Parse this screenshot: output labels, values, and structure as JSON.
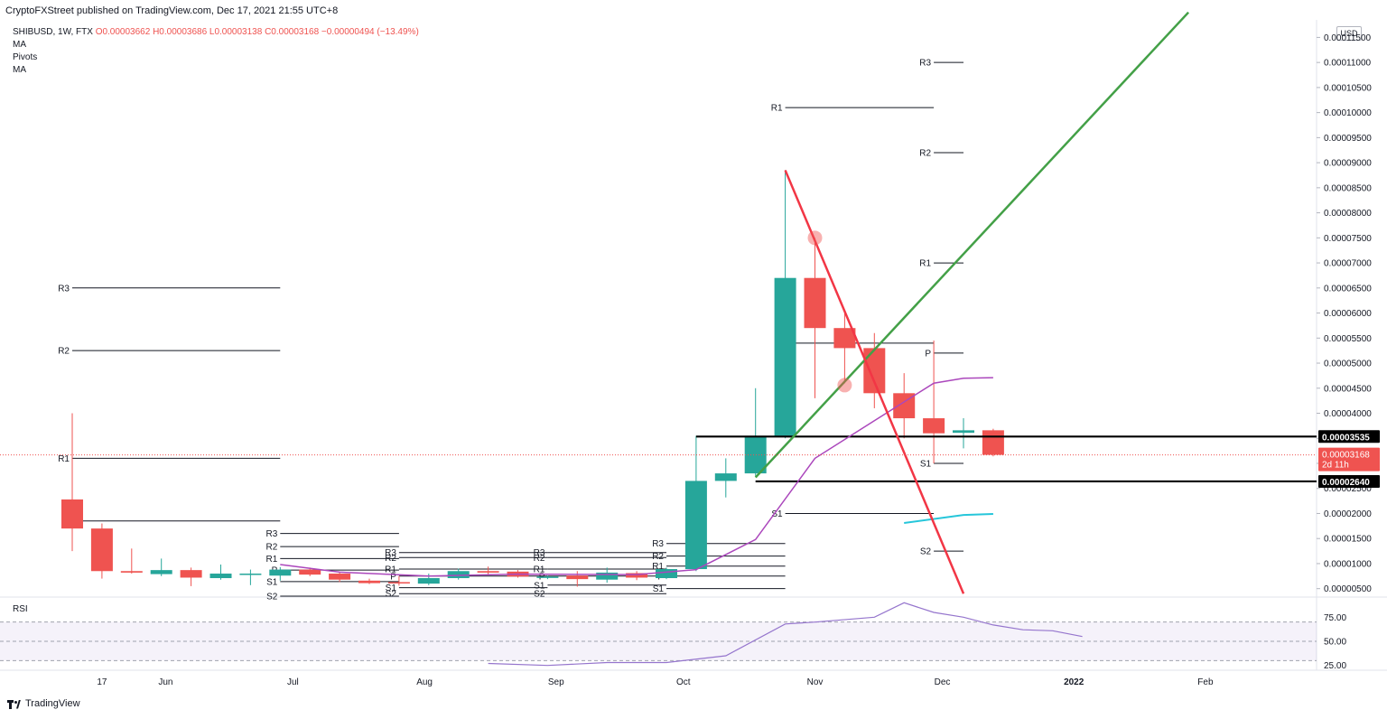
{
  "header": {
    "published": "CryptoFXStreet published on TradingView.com, Dec 17, 2021 21:55 UTC+8"
  },
  "legend": {
    "symbol": "SHIBUSD, 1W, FTX",
    "ohlc": "O0.00003662 H0.00003686 L0.00003138 C0.00003168 −0.00000494 (−13.49%)",
    "indicators": [
      "MA",
      "Pivots",
      "MA"
    ]
  },
  "currency": "USD",
  "rsi_label": "RSI",
  "footer": {
    "brand": "TradingView"
  },
  "colors": {
    "up": "#26a69a",
    "down": "#ef5350",
    "ma": "#ab47bc",
    "ma2": "#26c6da",
    "rsi": "#9575cd",
    "trend_green": "#43a047",
    "trend_red": "#f23645"
  },
  "chart_data": [
    {
      "type": "candlestick",
      "title": "SHIBUSD, 1W, FTX",
      "x_ticks": [
        "17",
        "Jun",
        "Jul",
        "Aug",
        "Sep",
        "Oct",
        "Nov",
        "Dec",
        "2022",
        "Feb"
      ],
      "y_ticks": [
        "0.00011500",
        "0.00011000",
        "0.00010500",
        "0.00010000",
        "0.00009500",
        "0.00009000",
        "0.00008500",
        "0.00008000",
        "0.00007500",
        "0.00007000",
        "0.00006500",
        "0.00006000",
        "0.00005500",
        "0.00005000",
        "0.00004500",
        "0.00004000",
        "0.00003500",
        "0.00003000",
        "0.00002500",
        "0.00002000",
        "0.00001500",
        "0.00001000",
        "0.00000500"
      ],
      "ylim": [
        3.5e-06,
        0.0001185
      ],
      "candles": [
        {
          "date": "2021-05-10",
          "o": 2.28e-05,
          "h": 4e-05,
          "l": 1.25e-05,
          "c": 1.7e-05
        },
        {
          "date": "2021-05-17",
          "o": 1.7e-05,
          "h": 1.8e-05,
          "l": 7e-06,
          "c": 8.5e-06
        },
        {
          "date": "2021-05-24",
          "o": 8.5e-06,
          "h": 1.3e-05,
          "l": 8e-06,
          "c": 8.2e-06
        },
        {
          "date": "2021-05-31",
          "o": 7.9e-06,
          "h": 1.1e-05,
          "l": 7.5e-06,
          "c": 8.7e-06
        },
        {
          "date": "2021-06-07",
          "o": 8.7e-06,
          "h": 9.2e-06,
          "l": 5.5e-06,
          "c": 7.2e-06
        },
        {
          "date": "2021-06-14",
          "o": 7.1e-06,
          "h": 9.8e-06,
          "l": 6.8e-06,
          "c": 8e-06
        },
        {
          "date": "2021-06-21",
          "o": 8e-06,
          "h": 8.8e-06,
          "l": 5.7e-06,
          "c": 8e-06
        },
        {
          "date": "2021-06-28",
          "o": 7.6e-06,
          "h": 9.3e-06,
          "l": 6.6e-06,
          "c": 8.8e-06
        },
        {
          "date": "2021-07-05",
          "o": 8.8e-06,
          "h": 9.2e-06,
          "l": 7.5e-06,
          "c": 7.8e-06
        },
        {
          "date": "2021-07-12",
          "o": 8e-06,
          "h": 8.2e-06,
          "l": 6.3e-06,
          "c": 6.8e-06
        },
        {
          "date": "2021-07-19",
          "o": 6.6e-06,
          "h": 7e-06,
          "l": 5.9e-06,
          "c": 6.1e-06
        },
        {
          "date": "2021-07-26",
          "o": 6.3e-06,
          "h": 7.5e-06,
          "l": 5.6e-06,
          "c": 6.1e-06
        },
        {
          "date": "2021-08-02",
          "o": 6e-06,
          "h": 8e-06,
          "l": 5.7e-06,
          "c": 7.1e-06
        },
        {
          "date": "2021-08-09",
          "o": 7.1e-06,
          "h": 9e-06,
          "l": 6.8e-06,
          "c": 8.5e-06
        },
        {
          "date": "2021-08-16",
          "o": 8.5e-06,
          "h": 9.4e-06,
          "l": 7.8e-06,
          "c": 8.2e-06
        },
        {
          "date": "2021-08-23",
          "o": 8.4e-06,
          "h": 8.7e-06,
          "l": 7.2e-06,
          "c": 7.4e-06
        },
        {
          "date": "2021-08-30",
          "o": 7.3e-06,
          "h": 7.6e-06,
          "l": 6.9e-06,
          "c": 7.4e-06
        },
        {
          "date": "2021-09-06",
          "o": 7.6e-06,
          "h": 8.5e-06,
          "l": 5.4e-06,
          "c": 6.9e-06
        },
        {
          "date": "2021-09-13",
          "o": 6.8e-06,
          "h": 9.2e-06,
          "l": 6.2e-06,
          "c": 8.2e-06
        },
        {
          "date": "2021-09-20",
          "o": 8.1e-06,
          "h": 8.5e-06,
          "l": 6.7e-06,
          "c": 7.2e-06
        },
        {
          "date": "2021-09-27",
          "o": 7.1e-06,
          "h": 9.2e-06,
          "l": 6.9e-06,
          "c": 8.9e-06
        },
        {
          "date": "2021-10-04",
          "o": 8.9e-06,
          "h": 3.55e-05,
          "l": 8.5e-06,
          "c": 2.65e-05
        },
        {
          "date": "2021-10-11",
          "o": 2.65e-05,
          "h": 3.1e-05,
          "l": 2.32e-05,
          "c": 2.8e-05
        },
        {
          "date": "2021-10-18",
          "o": 2.8e-05,
          "h": 4.5e-05,
          "l": 2.75e-05,
          "c": 3.55e-05
        },
        {
          "date": "2021-10-25",
          "o": 3.55e-05,
          "h": 8.85e-05,
          "l": 3.5e-05,
          "c": 6.7e-05
        },
        {
          "date": "2021-11-01",
          "o": 6.7e-05,
          "h": 7.5e-05,
          "l": 4.3e-05,
          "c": 5.7e-05
        },
        {
          "date": "2021-11-08",
          "o": 5.7e-05,
          "h": 6e-05,
          "l": 4.6e-05,
          "c": 5.3e-05
        },
        {
          "date": "2021-11-15",
          "o": 5.3e-05,
          "h": 5.6e-05,
          "l": 4.1e-05,
          "c": 4.4e-05
        },
        {
          "date": "2021-11-22",
          "o": 4.4e-05,
          "h": 4.8e-05,
          "l": 3.5e-05,
          "c": 3.9e-05
        },
        {
          "date": "2021-11-29",
          "o": 3.9e-05,
          "h": 5.45e-05,
          "l": 3e-05,
          "c": 3.6e-05
        },
        {
          "date": "2021-12-06",
          "o": 3.61e-05,
          "h": 3.9e-05,
          "l": 3.3e-05,
          "c": 3.66e-05
        },
        {
          "date": "2021-12-13",
          "o": 3.66e-05,
          "h": 3.69e-05,
          "l": 3.14e-05,
          "c": 3.17e-05
        }
      ],
      "ma_line": [
        {
          "date": "2021-06-28",
          "v": 9.8e-06
        },
        {
          "date": "2021-07-12",
          "v": 8.3e-06
        },
        {
          "date": "2021-08-02",
          "v": 7.5e-06
        },
        {
          "date": "2021-08-23",
          "v": 7.9e-06
        },
        {
          "date": "2021-09-20",
          "v": 7.8e-06
        },
        {
          "date": "2021-10-04",
          "v": 8.8e-06
        },
        {
          "date": "2021-10-18",
          "v": 1.48e-05
        },
        {
          "date": "2021-11-01",
          "v": 3.1e-05
        },
        {
          "date": "2021-11-15",
          "v": 3.85e-05
        },
        {
          "date": "2021-11-29",
          "v": 4.6e-05
        },
        {
          "date": "2021-12-06",
          "v": 4.7e-05
        },
        {
          "date": "2021-12-13",
          "v": 4.71e-05
        }
      ],
      "ma2_line": [
        {
          "date": "2021-11-22",
          "v": 1.81e-05
        },
        {
          "date": "2021-12-06",
          "v": 1.97e-05
        },
        {
          "date": "2021-12-13",
          "v": 1.99e-05
        }
      ],
      "trendlines": [
        {
          "color": "green",
          "from": {
            "date": "2021-10-18",
            "v": 2.72e-05
          },
          "to": {
            "date": "2022-01-28",
            "v": 0.00012
          }
        },
        {
          "color": "red",
          "from": {
            "date": "2021-10-25",
            "v": 8.85e-05
          },
          "to": {
            "date": "2021-12-06",
            "v": 4e-06
          }
        }
      ],
      "markers": [
        {
          "date": "2021-11-01",
          "v": 7.5e-05
        },
        {
          "date": "2021-11-08",
          "v": 4.56e-05
        }
      ],
      "horizontal_levels": [
        {
          "value": 3.535e-05,
          "label": "0.00003535",
          "from": "2021-10-04"
        },
        {
          "value": 2.64e-05,
          "label": "0.00002640",
          "from": "2021-10-18"
        }
      ],
      "last_price": {
        "value": 3.168e-05,
        "label": "0.00003168",
        "countdown": "2d 11h"
      },
      "pivots": [
        {
          "from": "2021-05-10",
          "to": "2021-06-28",
          "levels": [
            {
              "name": "R3",
              "v": 6.5e-05
            },
            {
              "name": "R2",
              "v": 5.25e-05
            },
            {
              "name": "R1",
              "v": 3.1e-05
            },
            {
              "name": "P",
              "v": 1.85e-05
            }
          ]
        },
        {
          "from": "2021-06-28",
          "to": "2021-07-26",
          "levels": [
            {
              "name": "R3",
              "v": 1.6e-05
            },
            {
              "name": "R2",
              "v": 1.34e-05
            },
            {
              "name": "R1",
              "v": 1.1e-05
            },
            {
              "name": "P",
              "v": 8.7e-06
            },
            {
              "name": "S1",
              "v": 6.4e-06
            },
            {
              "name": "S2",
              "v": 3.5e-06
            }
          ]
        },
        {
          "from": "2021-07-26",
          "to": "2021-08-30",
          "levels": [
            {
              "name": "R3",
              "v": 1.22e-05
            },
            {
              "name": "R2",
              "v": 1.12e-05
            },
            {
              "name": "R1",
              "v": 8.9e-06
            },
            {
              "name": "P",
              "v": 7.5e-06
            },
            {
              "name": "S1",
              "v": 5.2e-06
            },
            {
              "name": "S2",
              "v": 4e-06
            }
          ]
        },
        {
          "from": "2021-08-30",
          "to": "2021-09-27",
          "levels": [
            {
              "name": "R3",
              "v": 1.22e-05
            },
            {
              "name": "R2",
              "v": 1.12e-05
            },
            {
              "name": "R1",
              "v": 8.9e-06
            },
            {
              "name": "P",
              "v": 7.5e-06
            },
            {
              "name": "S1",
              "v": 5.7e-06
            },
            {
              "name": "S2",
              "v": 4e-06
            }
          ]
        },
        {
          "from": "2021-09-27",
          "to": "2021-10-25",
          "levels": [
            {
              "name": "R3",
              "v": 1.4e-05
            },
            {
              "name": "R2",
              "v": 1.15e-05
            },
            {
              "name": "R1",
              "v": 9.5e-06
            },
            {
              "name": "P",
              "v": 7.5e-06
            },
            {
              "name": "S1",
              "v": 5e-06
            }
          ]
        },
        {
          "from": "2021-10-25",
          "to": "2021-11-29",
          "levels": [
            {
              "name": "R1",
              "v": 0.000101
            },
            {
              "name": "P",
              "v": 5.4e-05
            },
            {
              "name": "S1",
              "v": 2e-05
            }
          ]
        },
        {
          "from": "2021-11-29",
          "to": "2021-12-06",
          "levels": [
            {
              "name": "R3",
              "v": 0.00011
            },
            {
              "name": "R2",
              "v": 9.2e-05
            },
            {
              "name": "R1",
              "v": 7e-05
            },
            {
              "name": "P",
              "v": 5.2e-05
            },
            {
              "name": "S1",
              "v": 3e-05
            },
            {
              "name": "S2",
              "v": 1.25e-05
            }
          ]
        }
      ]
    },
    {
      "type": "line",
      "title": "RSI",
      "y_ticks": [
        "75.00",
        "50.00",
        "25.00"
      ],
      "ylim": [
        20,
        95
      ],
      "bands": [
        70,
        50,
        30
      ],
      "series": [
        {
          "values": [
            {
              "date": "2021-08-16",
              "v": 27
            },
            {
              "date": "2021-08-30",
              "v": 25
            },
            {
              "date": "2021-09-13",
              "v": 28
            },
            {
              "date": "2021-09-27",
              "v": 28
            },
            {
              "date": "2021-10-11",
              "v": 35
            },
            {
              "date": "2021-10-25",
              "v": 68
            },
            {
              "date": "2021-11-01",
              "v": 70
            },
            {
              "date": "2021-11-15",
              "v": 75
            },
            {
              "date": "2021-11-22",
              "v": 90
            },
            {
              "date": "2021-11-29",
              "v": 80
            },
            {
              "date": "2021-12-06",
              "v": 75
            },
            {
              "date": "2021-12-13",
              "v": 67
            },
            {
              "date": "2021-12-20",
              "v": 62
            },
            {
              "date": "2021-12-27",
              "v": 61
            },
            {
              "date": "2022-01-03",
              "v": 55
            }
          ]
        }
      ]
    }
  ]
}
